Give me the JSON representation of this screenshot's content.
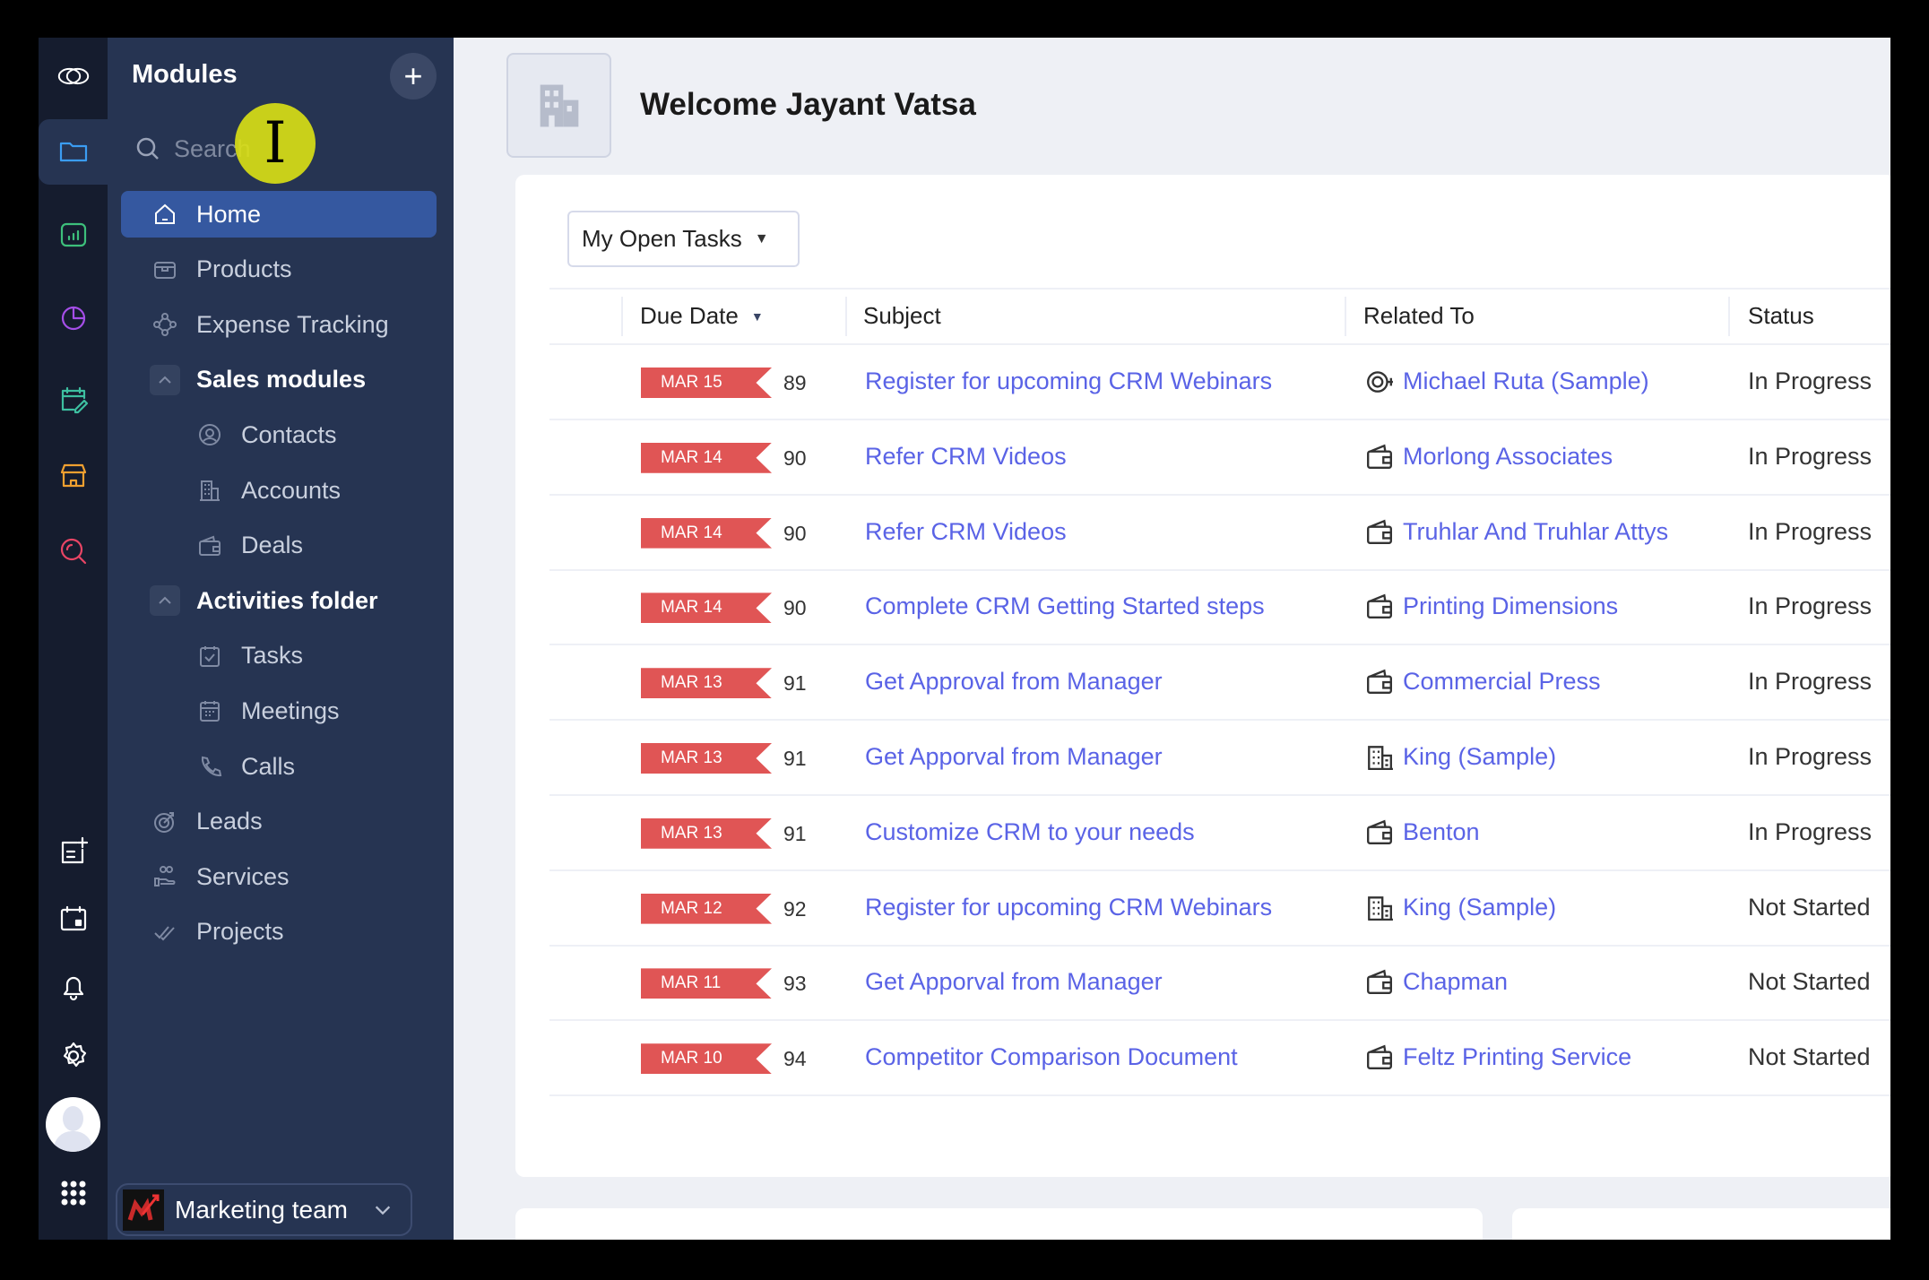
{
  "sidebar": {
    "title": "Modules",
    "add_label": "+",
    "search_placeholder": "Search",
    "items": [
      {
        "label": "Home",
        "icon": "home-icon",
        "active": true
      },
      {
        "label": "Products",
        "icon": "box-icon"
      },
      {
        "label": "Expense Tracking",
        "icon": "flow-icon"
      },
      {
        "label": "Sales modules",
        "icon": "chevron-up-icon",
        "group": true
      },
      {
        "label": "Contacts",
        "icon": "user-circle-icon",
        "sub": true
      },
      {
        "label": "Accounts",
        "icon": "building-icon",
        "sub": true
      },
      {
        "label": "Deals",
        "icon": "wallet-icon",
        "sub": true
      },
      {
        "label": "Activities folder",
        "icon": "chevron-up-icon",
        "group": true
      },
      {
        "label": "Tasks",
        "icon": "task-icon",
        "sub": true
      },
      {
        "label": "Meetings",
        "icon": "calendar-icon",
        "sub": true
      },
      {
        "label": "Calls",
        "icon": "phone-icon",
        "sub": true
      },
      {
        "label": "Leads",
        "icon": "target-icon"
      },
      {
        "label": "Services",
        "icon": "hand-icon"
      },
      {
        "label": "Projects",
        "icon": "double-check-icon"
      }
    ],
    "team": "Marketing team"
  },
  "header": {
    "title": "Welcome Jayant Vatsa"
  },
  "tasks": {
    "view": "My Open Tasks",
    "columns": [
      "Due Date",
      "Subject",
      "Related To",
      "Status"
    ],
    "rows": [
      {
        "date": "MAR 15",
        "num": "89",
        "subject": "Register for upcoming CRM Webinars",
        "related": "Michael Ruta (Sample)",
        "rel_icon": "contact",
        "status": "In Progress"
      },
      {
        "date": "MAR 14",
        "num": "90",
        "subject": "Refer CRM Videos",
        "related": "Morlong Associates",
        "rel_icon": "wallet",
        "status": "In Progress"
      },
      {
        "date": "MAR 14",
        "num": "90",
        "subject": "Refer CRM Videos",
        "related": "Truhlar And Truhlar Attys",
        "rel_icon": "wallet",
        "status": "In Progress"
      },
      {
        "date": "MAR 14",
        "num": "90",
        "subject": "Complete CRM Getting Started steps",
        "related": "Printing Dimensions",
        "rel_icon": "wallet",
        "status": "In Progress"
      },
      {
        "date": "MAR 13",
        "num": "91",
        "subject": "Get Approval from Manager",
        "related": "Commercial Press",
        "rel_icon": "wallet",
        "status": "In Progress"
      },
      {
        "date": "MAR 13",
        "num": "91",
        "subject": "Get Apporval from Manager",
        "related": "King (Sample)",
        "rel_icon": "building",
        "status": "In Progress"
      },
      {
        "date": "MAR 13",
        "num": "91",
        "subject": "Customize CRM to your needs",
        "related": "Benton",
        "rel_icon": "wallet",
        "status": "In Progress"
      },
      {
        "date": "MAR 12",
        "num": "92",
        "subject": "Register for upcoming CRM Webinars",
        "related": "King (Sample)",
        "rel_icon": "building",
        "status": "Not Started"
      },
      {
        "date": "MAR 11",
        "num": "93",
        "subject": "Get Apporval from Manager",
        "related": "Chapman",
        "rel_icon": "wallet",
        "status": "Not Started"
      },
      {
        "date": "MAR 10",
        "num": "94",
        "subject": "Competitor Comparison Document",
        "related": "Feltz Printing Service",
        "rel_icon": "wallet",
        "status": "Not Started"
      }
    ]
  },
  "colors": {
    "badge": "#e05555",
    "link": "#5a63e6",
    "active": "#3558a0",
    "panel": "#263452",
    "rail": "#151c2e"
  }
}
